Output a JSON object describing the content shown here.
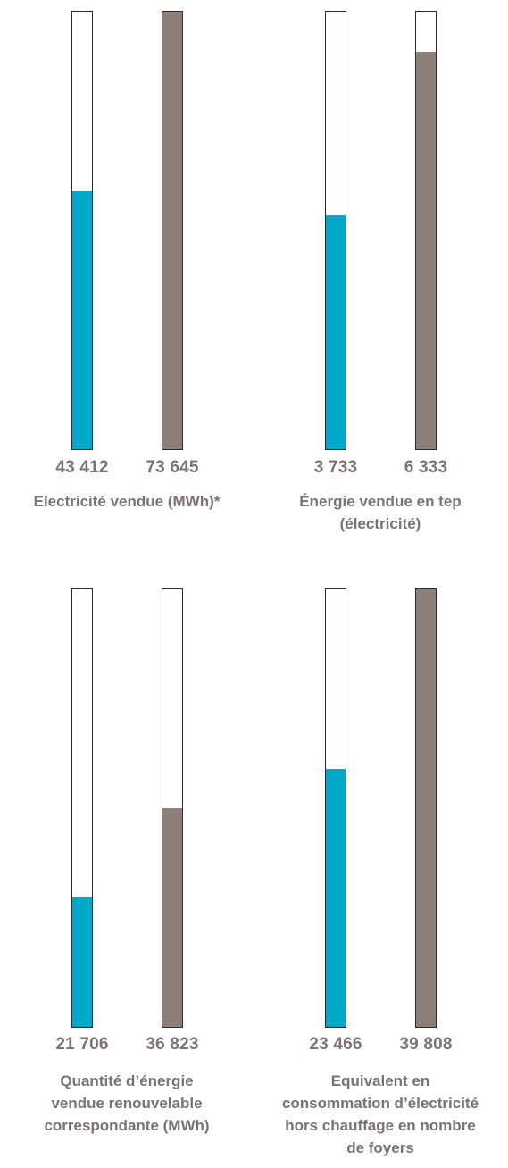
{
  "colors": {
    "accent": "#00a8cc",
    "secondary": "#8e7f7b",
    "text": "#7e7271",
    "outline": "#2b2b2b"
  },
  "chart_data": [
    {
      "type": "bar",
      "title": "Electricité vendue (MWh)*",
      "values": [
        {
          "label": "43 412",
          "value": 43412,
          "fill_ratio": 0.59,
          "color": "#00a8cc"
        },
        {
          "label": "73 645",
          "value": 73645,
          "fill_ratio": 1.0,
          "color": "#8e7f7b"
        }
      ]
    },
    {
      "type": "bar",
      "title": "Énergie vendue en tep\n(électricité)",
      "values": [
        {
          "label": "3 733",
          "value": 3733,
          "fill_ratio": 0.535,
          "color": "#00a8cc"
        },
        {
          "label": "6 333",
          "value": 6333,
          "fill_ratio": 0.909,
          "color": "#8e7f7b"
        }
      ]
    },
    {
      "type": "bar",
      "title": "Quantité d’énergie\nvendue renouvelable\ncorrespondante (MWh)",
      "values": [
        {
          "label": "21 706",
          "value": 21706,
          "fill_ratio": 0.295,
          "color": "#00a8cc"
        },
        {
          "label": "36 823",
          "value": 36823,
          "fill_ratio": 0.5,
          "color": "#8e7f7b"
        }
      ]
    },
    {
      "type": "bar",
      "title": "Equivalent en\nconsommation d’électricité\nhors chauffage en nombre\nde foyers",
      "values": [
        {
          "label": "23 466",
          "value": 23466,
          "fill_ratio": 0.589,
          "color": "#00a8cc"
        },
        {
          "label": "39 808",
          "value": 39808,
          "fill_ratio": 1.0,
          "color": "#8e7f7b"
        }
      ]
    }
  ]
}
